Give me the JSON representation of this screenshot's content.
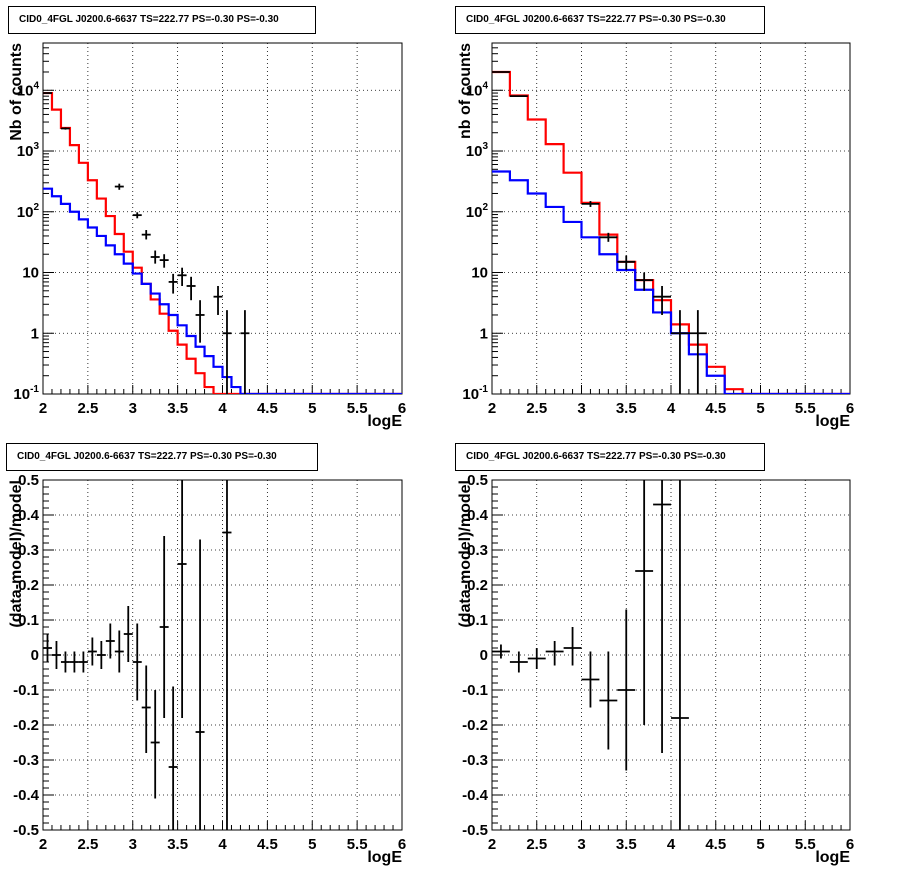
{
  "chart_data": [
    {
      "type": "histogram",
      "title": "CID0_4FGL J0200.6-6637 TS=222.77 PS=-0.30 PS=-0.30",
      "xlabel": "logE",
      "ylabel": "Nb of counts",
      "xlim": [
        2,
        6
      ],
      "ylim": [
        0.1,
        60000
      ],
      "ylog": true,
      "grid": true,
      "x_ticks": [
        "2",
        "2.5",
        "3",
        "3.5",
        "4",
        "4.5",
        "5",
        "5.5",
        "6"
      ],
      "y_ticks": [
        "10-1",
        "1",
        "10",
        "102",
        "103",
        "104"
      ],
      "bin_edges": [
        2.0,
        2.1,
        2.2,
        2.3,
        2.4,
        2.5,
        2.6,
        2.7,
        2.8,
        2.9,
        3.0,
        3.1,
        3.2,
        3.3,
        3.4,
        3.5,
        3.6,
        3.7,
        3.8,
        3.9,
        4.0,
        4.1,
        4.2,
        4.3,
        4.4,
        4.5,
        4.6,
        4.7,
        4.8,
        4.9,
        5.0,
        5.1,
        5.2,
        5.3,
        5.4,
        5.5,
        5.6,
        5.7,
        5.8,
        5.9,
        6.0
      ],
      "series": [
        {
          "color": "#ff0000",
          "values": [
            9000,
            4800,
            2400,
            1250,
            640,
            330,
            165,
            85,
            43,
            22,
            12,
            6.5,
            3.6,
            2.1,
            1.1,
            0.65,
            0.38,
            0.22,
            0.13,
            0.1,
            0.1,
            0.1,
            0.1,
            0.1,
            0.1,
            0.1,
            0.1,
            0.1,
            0.1,
            0.1,
            0.1,
            0.1,
            0.1,
            0.1,
            0.1,
            0.1,
            0.1,
            0.1,
            0.1,
            0.1
          ]
        },
        {
          "color": "#0000ff",
          "values": [
            240,
            180,
            135,
            100,
            75,
            55,
            40,
            28,
            20,
            14,
            9.6,
            6.5,
            4.5,
            3.0,
            2.0,
            1.35,
            0.9,
            0.6,
            0.42,
            0.28,
            0.19,
            0.13,
            0.1,
            0.1,
            0.1,
            0.1,
            0.1,
            0.1,
            0.1,
            0.1,
            0.1,
            0.1,
            0.1,
            0.1,
            0.1,
            0.1,
            0.1,
            0.1,
            0.1,
            0.1
          ]
        }
      ],
      "points": [
        {
          "x": 2.05,
          "y": 9000,
          "lo": 8800,
          "hi": 9200
        },
        {
          "x": 2.25,
          "y": 2350,
          "lo": 2250,
          "hi": 2450
        },
        {
          "x": 2.85,
          "y": 260,
          "lo": 230,
          "hi": 290
        },
        {
          "x": 3.05,
          "y": 88,
          "lo": 78,
          "hi": 98
        },
        {
          "x": 3.15,
          "y": 42,
          "lo": 35,
          "hi": 50
        },
        {
          "x": 3.25,
          "y": 18,
          "lo": 14,
          "hi": 23
        },
        {
          "x": 3.35,
          "y": 16,
          "lo": 12,
          "hi": 20
        },
        {
          "x": 3.45,
          "y": 7,
          "lo": 4.5,
          "hi": 9.5
        },
        {
          "x": 3.55,
          "y": 9,
          "lo": 6,
          "hi": 12
        },
        {
          "x": 3.65,
          "y": 6,
          "lo": 3.5,
          "hi": 8.5
        },
        {
          "x": 3.75,
          "y": 2,
          "lo": 0.7,
          "hi": 3.5
        },
        {
          "x": 3.95,
          "y": 4,
          "lo": 2,
          "hi": 6
        },
        {
          "x": 4.05,
          "y": 1,
          "lo": 0.1,
          "hi": 2.4
        },
        {
          "x": 4.25,
          "y": 1,
          "lo": 0.1,
          "hi": 2.4
        }
      ]
    },
    {
      "type": "histogram",
      "title": "CID0_4FGL J0200.6-6637 TS=222.77 PS=-0.30 PS=-0.30",
      "xlabel": "logE",
      "ylabel": "nb of counts",
      "xlim": [
        2,
        6
      ],
      "ylim": [
        0.1,
        60000
      ],
      "ylog": true,
      "grid": true,
      "x_ticks": [
        "2",
        "2.5",
        "3",
        "3.5",
        "4",
        "4.5",
        "5",
        "5.5",
        "6"
      ],
      "y_ticks": [
        "10-1",
        "1",
        "10",
        "102",
        "103",
        "104"
      ],
      "bin_edges": [
        2.0,
        2.2,
        2.4,
        2.6,
        2.8,
        3.0,
        3.2,
        3.4,
        3.6,
        3.8,
        4.0,
        4.2,
        4.4,
        4.6,
        4.8,
        5.0,
        5.2,
        5.4,
        5.6,
        5.8,
        6.0
      ],
      "series": [
        {
          "color": "#ff0000",
          "values": [
            20000,
            8200,
            3300,
            1300,
            440,
            140,
            42,
            15,
            7.5,
            3.5,
            1.4,
            0.65,
            0.28,
            0.12,
            0.1,
            0.1,
            0.1,
            0.1,
            0.1,
            0.1
          ]
        },
        {
          "color": "#0000ff",
          "values": [
            460,
            330,
            200,
            120,
            68,
            38,
            20,
            11,
            5.2,
            2.2,
            1.0,
            0.45,
            0.2,
            0.1,
            0.1,
            0.1,
            0.1,
            0.1,
            0.1,
            0.1
          ]
        }
      ],
      "points": [
        {
          "x": 2.1,
          "y": 20000,
          "lo": 19700,
          "hi": 20300
        },
        {
          "x": 2.3,
          "y": 8000,
          "lo": 7800,
          "hi": 8200
        },
        {
          "x": 3.1,
          "y": 135,
          "lo": 120,
          "hi": 150
        },
        {
          "x": 3.3,
          "y": 38,
          "lo": 32,
          "hi": 45
        },
        {
          "x": 3.5,
          "y": 15,
          "lo": 11,
          "hi": 19
        },
        {
          "x": 3.7,
          "y": 7.5,
          "lo": 5,
          "hi": 10
        },
        {
          "x": 3.9,
          "y": 4,
          "lo": 2,
          "hi": 6
        },
        {
          "x": 4.1,
          "y": 1,
          "lo": 0.1,
          "hi": 2.4
        },
        {
          "x": 4.3,
          "y": 1,
          "lo": 0.1,
          "hi": 2.4
        }
      ]
    },
    {
      "type": "scatter",
      "title": "CID0_4FGL J0200.6-6637 TS=222.77 PS=-0.30 PS=-0.30",
      "xlabel": "logE",
      "ylabel": "(data-model)/model",
      "xlim": [
        2,
        6
      ],
      "ylim": [
        -0.5,
        0.5
      ],
      "ylog": false,
      "grid": true,
      "x_ticks": [
        "2",
        "2.5",
        "3",
        "3.5",
        "4",
        "4.5",
        "5",
        "5.5",
        "6"
      ],
      "y_ticks": [
        "-0.5",
        "-0.4",
        "-0.3",
        "-0.2",
        "-0.1",
        "0",
        "0.1",
        "0.2",
        "0.3",
        "0.4",
        "0.5"
      ],
      "xerr": 0.05,
      "points": [
        {
          "x": 2.05,
          "y": 0.02,
          "lo": -0.02,
          "hi": 0.06
        },
        {
          "x": 2.15,
          "y": 0.0,
          "lo": -0.04,
          "hi": 0.04
        },
        {
          "x": 2.25,
          "y": -0.02,
          "lo": -0.05,
          "hi": 0.01
        },
        {
          "x": 2.35,
          "y": -0.02,
          "lo": -0.05,
          "hi": 0.01
        },
        {
          "x": 2.45,
          "y": -0.02,
          "lo": -0.05,
          "hi": 0.01
        },
        {
          "x": 2.55,
          "y": 0.01,
          "lo": -0.03,
          "hi": 0.05
        },
        {
          "x": 2.65,
          "y": 0.0,
          "lo": -0.04,
          "hi": 0.04
        },
        {
          "x": 2.75,
          "y": 0.04,
          "lo": -0.01,
          "hi": 0.09
        },
        {
          "x": 2.85,
          "y": 0.01,
          "lo": -0.05,
          "hi": 0.07
        },
        {
          "x": 2.95,
          "y": 0.06,
          "lo": -0.02,
          "hi": 0.14
        },
        {
          "x": 3.05,
          "y": -0.02,
          "lo": -0.13,
          "hi": 0.09
        },
        {
          "x": 3.15,
          "y": -0.15,
          "lo": -0.28,
          "hi": -0.03
        },
        {
          "x": 3.25,
          "y": -0.25,
          "lo": -0.41,
          "hi": -0.1
        },
        {
          "x": 3.35,
          "y": 0.08,
          "lo": -0.18,
          "hi": 0.34
        },
        {
          "x": 3.45,
          "y": -0.32,
          "lo": -0.5,
          "hi": -0.09
        },
        {
          "x": 3.55,
          "y": 0.26,
          "lo": -0.18,
          "hi": 0.5
        },
        {
          "x": 3.75,
          "y": -0.22,
          "lo": -0.5,
          "hi": 0.33
        },
        {
          "x": 4.05,
          "y": 0.35,
          "lo": -0.5,
          "hi": 0.5
        }
      ]
    },
    {
      "type": "scatter",
      "title": "CID0_4FGL J0200.6-6637 TS=222.77 PS=-0.30 PS=-0.30",
      "xlabel": "logE",
      "ylabel": "(data-model)/model",
      "xlim": [
        2,
        6
      ],
      "ylim": [
        -0.5,
        0.5
      ],
      "ylog": false,
      "grid": true,
      "x_ticks": [
        "2",
        "2.5",
        "3",
        "3.5",
        "4",
        "4.5",
        "5",
        "5.5",
        "6"
      ],
      "y_ticks": [
        "-0.5",
        "-0.4",
        "-0.3",
        "-0.2",
        "-0.1",
        "0",
        "0.1",
        "0.2",
        "0.3",
        "0.4",
        "0.5"
      ],
      "xerr": 0.1,
      "points": [
        {
          "x": 2.1,
          "y": 0.01,
          "lo": -0.01,
          "hi": 0.03
        },
        {
          "x": 2.3,
          "y": -0.02,
          "lo": -0.05,
          "hi": 0.01
        },
        {
          "x": 2.5,
          "y": -0.01,
          "lo": -0.04,
          "hi": 0.02
        },
        {
          "x": 2.7,
          "y": 0.01,
          "lo": -0.03,
          "hi": 0.04
        },
        {
          "x": 2.9,
          "y": 0.02,
          "lo": -0.03,
          "hi": 0.08
        },
        {
          "x": 3.1,
          "y": -0.07,
          "lo": -0.15,
          "hi": 0.01
        },
        {
          "x": 3.3,
          "y": -0.13,
          "lo": -0.27,
          "hi": 0.01
        },
        {
          "x": 3.5,
          "y": -0.1,
          "lo": -0.33,
          "hi": 0.13
        },
        {
          "x": 3.7,
          "y": 0.24,
          "lo": -0.2,
          "hi": 0.5
        },
        {
          "x": 3.9,
          "y": 0.43,
          "lo": -0.28,
          "hi": 0.5
        },
        {
          "x": 4.1,
          "y": -0.18,
          "lo": -0.5,
          "hi": 0.5
        }
      ]
    }
  ]
}
